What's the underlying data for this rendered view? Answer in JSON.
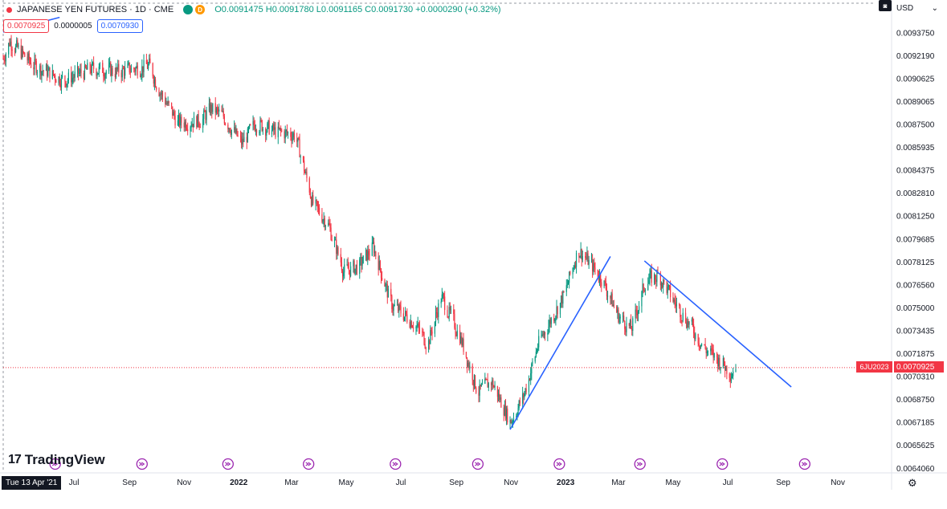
{
  "header": {
    "title": "JAPANESE YEN FUTURES · 1D · CME",
    "badge_d": "D",
    "ohlc": "O0.0091475 H0.0091780 L0.0091165 C0.0091730 +0.0000290 (+0.32%)",
    "currency": "USD",
    "currency_chevron": "⌄"
  },
  "measure": {
    "price": "0.0070925",
    "tick": "0.0000005",
    "price2": "0.0070930"
  },
  "branding": {
    "logo_mark": "17",
    "logo_text": "TradingView"
  },
  "footer": {
    "date": "Tue 13 Apr '21",
    "settings_icon": "gear-icon"
  },
  "last_price": {
    "symbol": "6JU2023",
    "value": "0.0070925"
  },
  "colors": {
    "up": "#089981",
    "down": "#f23645",
    "trend": "#2962ff",
    "grid_dash": "#9598a1"
  },
  "chart_data": {
    "type": "candlestick",
    "title": "JAPANESE YEN FUTURES · 1D · CME",
    "y_axis": {
      "ticks": [
        "0.0093750",
        "0.0092190",
        "0.0090625",
        "0.0089065",
        "0.0087500",
        "0.0085935",
        "0.0084375",
        "0.0082810",
        "0.0081250",
        "0.0079685",
        "0.0078125",
        "0.0076560",
        "0.0075000",
        "0.0073435",
        "0.0071875",
        "0.0070310",
        "0.0068750",
        "0.0067185",
        "0.0065625",
        "0.0064060"
      ],
      "range": [
        0.00638,
        0.0095
      ]
    },
    "x_axis": {
      "ticks": [
        "Jul",
        "Sep",
        "Nov",
        "2022",
        "Mar",
        "May",
        "Jul",
        "Sep",
        "Nov",
        "2023",
        "Mar",
        "May",
        "Jul",
        "Sep",
        "Nov"
      ],
      "bold": [
        "2022",
        "2023"
      ]
    },
    "series": [
      {
        "anchors": [
          [
            "2021-04-13",
            0.0092
          ],
          [
            "2021-04-20",
            0.00932
          ],
          [
            "2021-05-15",
            0.00916
          ],
          [
            "2021-06-20",
            0.00905
          ],
          [
            "2021-07-20",
            0.00913
          ],
          [
            "2021-08-20",
            0.00911
          ],
          [
            "2021-09-23",
            0.00915
          ],
          [
            "2021-10-05",
            0.00897
          ],
          [
            "2021-10-25",
            0.00876
          ],
          [
            "2021-11-20",
            0.00878
          ],
          [
            "2021-12-01",
            0.00886
          ],
          [
            "2021-12-15",
            0.0088
          ],
          [
            "2022-01-04",
            0.00862
          ],
          [
            "2022-01-20",
            0.00876
          ],
          [
            "2022-02-10",
            0.0087
          ],
          [
            "2022-03-05",
            0.00868
          ],
          [
            "2022-03-25",
            0.0082
          ],
          [
            "2022-04-10",
            0.00808
          ],
          [
            "2022-04-28",
            0.00775
          ],
          [
            "2022-05-15",
            0.00778
          ],
          [
            "2022-05-31",
            0.00792
          ],
          [
            "2022-06-20",
            0.00752
          ],
          [
            "2022-07-15",
            0.0074
          ],
          [
            "2022-07-31",
            0.00725
          ],
          [
            "2022-08-15",
            0.00758
          ],
          [
            "2022-09-05",
            0.0073
          ],
          [
            "2022-09-25",
            0.00692
          ],
          [
            "2022-10-10",
            0.007
          ],
          [
            "2022-10-31",
            0.00672
          ],
          [
            "2022-11-15",
            0.0069
          ],
          [
            "2022-12-01",
            0.00725
          ],
          [
            "2022-12-31",
            0.0076
          ],
          [
            "2023-01-15",
            0.0079
          ],
          [
            "2023-02-10",
            0.0077
          ],
          [
            "2023-02-28",
            0.00745
          ],
          [
            "2023-03-15",
            0.00735
          ],
          [
            "2023-03-31",
            0.00768
          ],
          [
            "2023-04-15",
            0.00772
          ],
          [
            "2023-05-01",
            0.00755
          ],
          [
            "2023-05-20",
            0.00738
          ],
          [
            "2023-06-05",
            0.00722
          ],
          [
            "2023-06-25",
            0.00712
          ],
          [
            "2023-07-05",
            0.00705
          ],
          [
            "2023-07-10",
            0.00713
          ]
        ]
      }
    ],
    "trendlines": [
      {
        "name": "trendline-1",
        "from": [
          "2022-10-31",
          0.00667
        ],
        "to": [
          "2023-02-20",
          0.00785
        ]
      },
      {
        "name": "trendline-2",
        "from": [
          "2023-03-30",
          0.00782
        ],
        "to": [
          "2023-09-10",
          0.00696
        ]
      },
      {
        "name": "measure-line",
        "from": [
          "2021-04-13",
          0.00938
        ],
        "to": [
          "2021-06-15",
          0.00948
        ]
      }
    ],
    "last_price_line": 0.0070925,
    "x_range": [
      "2021-04-13",
      "2023-12-31"
    ]
  }
}
